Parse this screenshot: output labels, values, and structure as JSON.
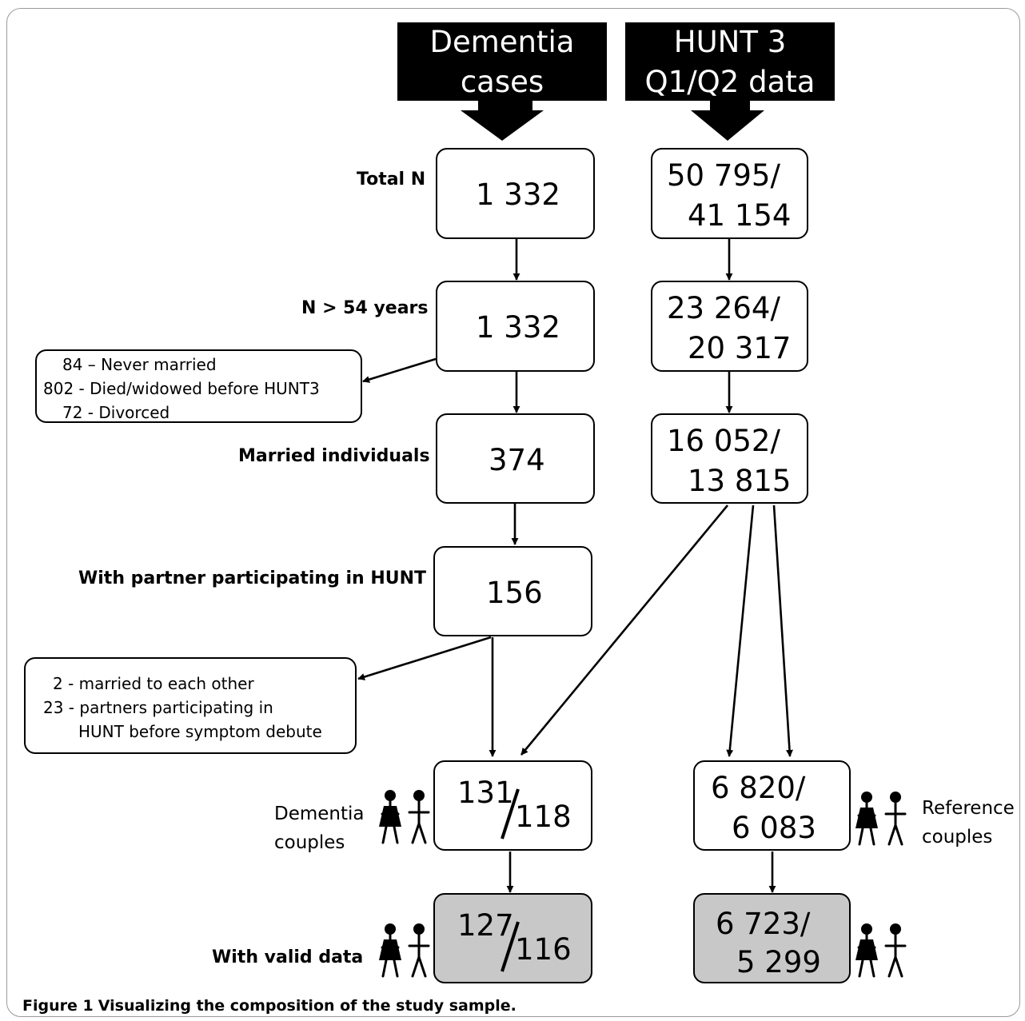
{
  "headers": {
    "left": {
      "line1": "Dementia",
      "line2": "cases"
    },
    "right": {
      "line1": "HUNT 3",
      "line2": "Q1/Q2 data"
    }
  },
  "row_labels": {
    "total": "Total N",
    "age": "N > 54 years",
    "married": "Married individuals",
    "partner": "With partner participating in HUNT",
    "valid": "With valid data"
  },
  "left_boxes": {
    "total": "1 332",
    "age": "1 332",
    "married": "374",
    "partner": "156",
    "couples": {
      "a": "131",
      "b": "118"
    },
    "valid": {
      "a": "127",
      "b": "116"
    }
  },
  "right_boxes": {
    "total": {
      "line1": "50 795/",
      "line2": "41 154"
    },
    "age": {
      "line1": "23 264/",
      "line2": "20 317"
    },
    "married": {
      "line1": "16 052/",
      "line2": "13 815"
    },
    "couples": {
      "line1": "6 820/",
      "line2": "6 083"
    },
    "valid": {
      "line1": "6 723/",
      "line2": "5 299"
    }
  },
  "exclusion_box_1": [
    "84 – Never married",
    "802 - Died/widowed before HUNT3",
    "72 - Divorced"
  ],
  "exclusion_box_2": [
    "2 - married to each other",
    "23 - partners participating in",
    "HUNT before symptom debute"
  ],
  "side_labels": {
    "dementia_couples": {
      "line1": "Dementia",
      "line2": "couples"
    },
    "reference_couples": {
      "line1": "Reference",
      "line2": "couples"
    }
  },
  "caption": {
    "label": "Figure 1",
    "text": "Visualizing the composition of the study sample."
  },
  "icons": [
    "couple-icon"
  ]
}
